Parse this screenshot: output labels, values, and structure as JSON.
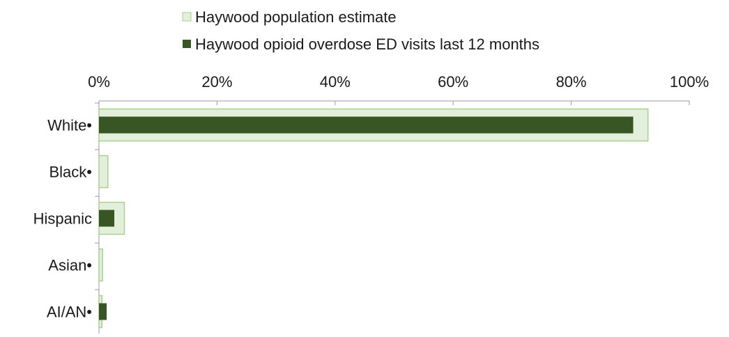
{
  "chart_data": {
    "type": "bar",
    "orientation": "horizontal",
    "categories": [
      "White•",
      "Black•",
      "Hispanic",
      "Asian•",
      "AI/AN•"
    ],
    "series": [
      {
        "name": "Haywood population estimate",
        "values": [
          93,
          1.5,
          4.3,
          0.6,
          0.5
        ],
        "color": "#e2efda",
        "border": "#a9d08e"
      },
      {
        "name": "Haywood opioid overdose ED visits last 12 months",
        "values": [
          90.5,
          0,
          2.6,
          0,
          1.3
        ],
        "color": "#375623"
      }
    ],
    "xlim": [
      0,
      100
    ],
    "xticks": [
      0,
      20,
      40,
      60,
      80,
      100
    ],
    "xtick_labels": [
      "0%",
      "20%",
      "40%",
      "60%",
      "80%",
      "100%"
    ],
    "axis_position": "top",
    "legend_position": "top",
    "grid": false
  }
}
